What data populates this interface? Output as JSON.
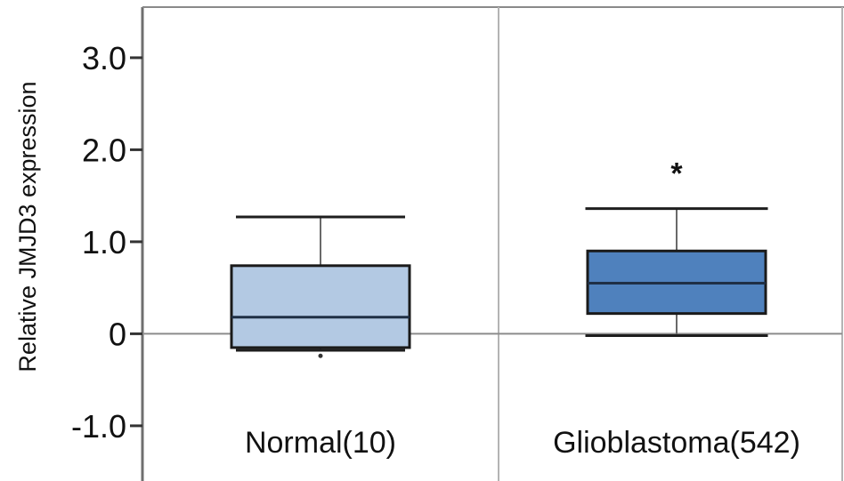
{
  "chart_data": {
    "type": "box",
    "ylabel": "Relative JMJD3 expression",
    "y_ticks": [
      {
        "value": 3.0,
        "label": "3.0"
      },
      {
        "value": 2.0,
        "label": "2.0"
      },
      {
        "value": 1.0,
        "label": "1.0"
      },
      {
        "value": 0,
        "label": "0"
      },
      {
        "value": -1.0,
        "label": "-1.0"
      }
    ],
    "ylim": [
      -1.6,
      3.55
    ],
    "reference_line": 0,
    "grid": false,
    "categories": [
      "Normal(10)",
      "Glioblastoma(542)"
    ],
    "boxes": [
      {
        "category": "Normal(10)",
        "whisker_low": -0.18,
        "q1": -0.15,
        "median": 0.18,
        "q3": 0.74,
        "whisker_high": 1.27,
        "outliers": [
          -0.24
        ],
        "color": "#b3c9e3",
        "significance": ""
      },
      {
        "category": "Glioblastoma(542)",
        "whisker_low": -0.02,
        "q1": 0.22,
        "median": 0.55,
        "q3": 0.9,
        "whisker_high": 1.36,
        "outliers": [],
        "color": "#4f81bd",
        "significance": "*"
      }
    ]
  }
}
